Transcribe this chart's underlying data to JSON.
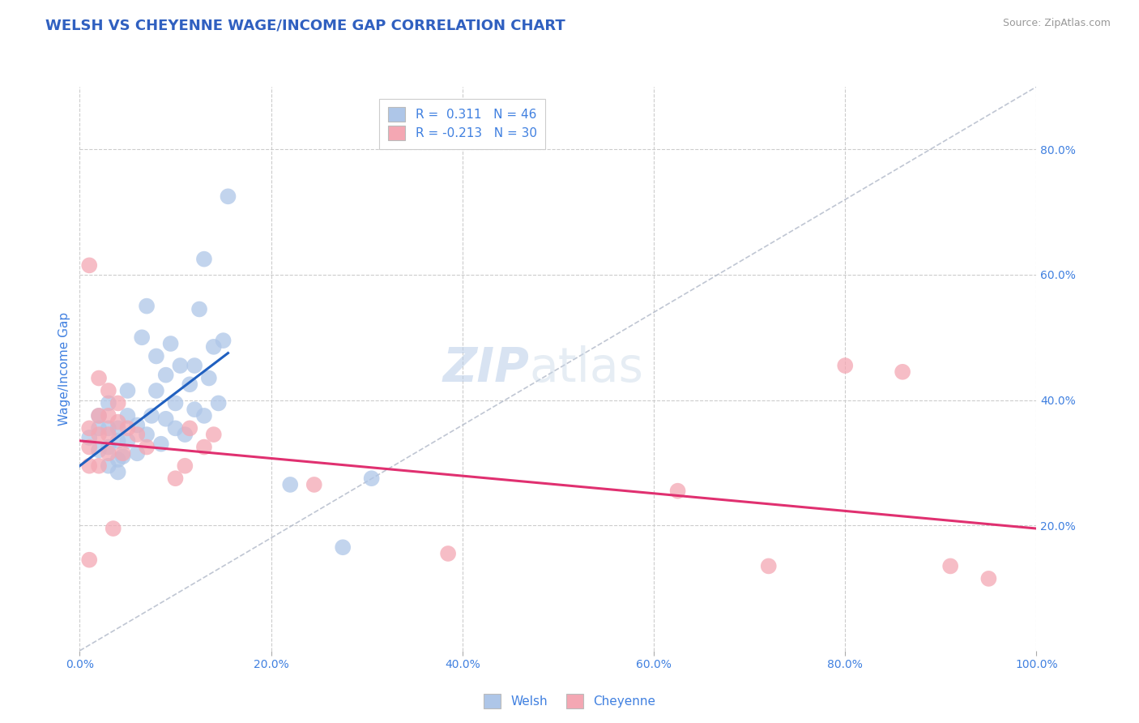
{
  "title": "WELSH VS CHEYENNE WAGE/INCOME GAP CORRELATION CHART",
  "source": "Source: ZipAtlas.com",
  "ylabel": "Wage/Income Gap",
  "xlim": [
    0.0,
    1.0
  ],
  "ylim": [
    0.0,
    0.9
  ],
  "yticks": [
    0.2,
    0.4,
    0.6,
    0.8
  ],
  "xticks": [
    0.0,
    0.2,
    0.4,
    0.6,
    0.8,
    1.0
  ],
  "welsh_color": "#aec6e8",
  "cheyenne_color": "#f4a7b3",
  "welsh_line_color": "#2060c0",
  "cheyenne_line_color": "#e03070",
  "diag_line_color": "#b0b8c8",
  "background_color": "#ffffff",
  "grid_color": "#cccccc",
  "title_color": "#3060c0",
  "label_color": "#4080e0",
  "watermark_zip": "ZIP",
  "watermark_atlas": "atlas",
  "welsh_line": [
    [
      0.0,
      0.295
    ],
    [
      0.155,
      0.475
    ]
  ],
  "cheyenne_line": [
    [
      0.0,
      0.335
    ],
    [
      1.0,
      0.195
    ]
  ],
  "welsh_points": [
    [
      0.01,
      0.34
    ],
    [
      0.02,
      0.32
    ],
    [
      0.02,
      0.355
    ],
    [
      0.02,
      0.375
    ],
    [
      0.03,
      0.295
    ],
    [
      0.03,
      0.325
    ],
    [
      0.03,
      0.355
    ],
    [
      0.03,
      0.395
    ],
    [
      0.04,
      0.285
    ],
    [
      0.04,
      0.305
    ],
    [
      0.04,
      0.335
    ],
    [
      0.04,
      0.355
    ],
    [
      0.045,
      0.31
    ],
    [
      0.05,
      0.335
    ],
    [
      0.05,
      0.375
    ],
    [
      0.05,
      0.415
    ],
    [
      0.06,
      0.315
    ],
    [
      0.06,
      0.36
    ],
    [
      0.065,
      0.5
    ],
    [
      0.07,
      0.55
    ],
    [
      0.07,
      0.345
    ],
    [
      0.075,
      0.375
    ],
    [
      0.08,
      0.415
    ],
    [
      0.08,
      0.47
    ],
    [
      0.085,
      0.33
    ],
    [
      0.09,
      0.37
    ],
    [
      0.09,
      0.44
    ],
    [
      0.095,
      0.49
    ],
    [
      0.1,
      0.355
    ],
    [
      0.1,
      0.395
    ],
    [
      0.105,
      0.455
    ],
    [
      0.11,
      0.345
    ],
    [
      0.115,
      0.425
    ],
    [
      0.12,
      0.385
    ],
    [
      0.12,
      0.455
    ],
    [
      0.125,
      0.545
    ],
    [
      0.13,
      0.625
    ],
    [
      0.13,
      0.375
    ],
    [
      0.135,
      0.435
    ],
    [
      0.14,
      0.485
    ],
    [
      0.145,
      0.395
    ],
    [
      0.15,
      0.495
    ],
    [
      0.155,
      0.725
    ],
    [
      0.22,
      0.265
    ],
    [
      0.275,
      0.165
    ],
    [
      0.305,
      0.275
    ]
  ],
  "cheyenne_points": [
    [
      0.01,
      0.615
    ],
    [
      0.01,
      0.355
    ],
    [
      0.01,
      0.325
    ],
    [
      0.01,
      0.295
    ],
    [
      0.02,
      0.435
    ],
    [
      0.02,
      0.375
    ],
    [
      0.02,
      0.345
    ],
    [
      0.02,
      0.295
    ],
    [
      0.03,
      0.415
    ],
    [
      0.03,
      0.375
    ],
    [
      0.03,
      0.345
    ],
    [
      0.03,
      0.315
    ],
    [
      0.035,
      0.195
    ],
    [
      0.04,
      0.395
    ],
    [
      0.04,
      0.365
    ],
    [
      0.045,
      0.315
    ],
    [
      0.05,
      0.355
    ],
    [
      0.06,
      0.345
    ],
    [
      0.07,
      0.325
    ],
    [
      0.1,
      0.275
    ],
    [
      0.01,
      0.145
    ],
    [
      0.11,
      0.295
    ],
    [
      0.115,
      0.355
    ],
    [
      0.13,
      0.325
    ],
    [
      0.14,
      0.345
    ],
    [
      0.245,
      0.265
    ],
    [
      0.385,
      0.155
    ],
    [
      0.625,
      0.255
    ],
    [
      0.72,
      0.135
    ],
    [
      0.8,
      0.455
    ],
    [
      0.86,
      0.445
    ],
    [
      0.91,
      0.135
    ],
    [
      0.95,
      0.115
    ]
  ]
}
